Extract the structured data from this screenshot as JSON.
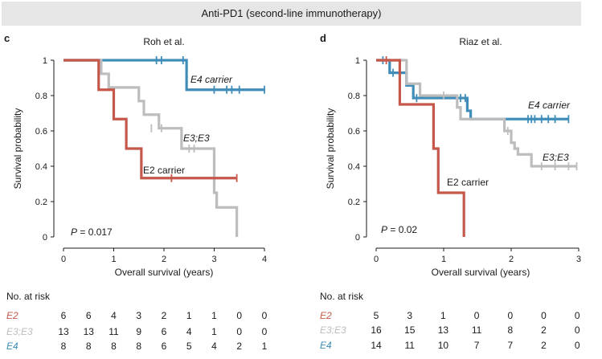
{
  "banner": "Anti-PD1 (second-line immunotherapy)",
  "colors": {
    "E2": "#c5584a",
    "E3E3": "#bdbdbd",
    "E4": "#3f8db8",
    "axis": "#1a1a1a"
  },
  "chart_data": [
    {
      "type": "line",
      "panel_letter": "c",
      "title": "Roh et al.",
      "xlabel": "Overall survival (years)",
      "ylabel": "Survival probability",
      "xlim": [
        0,
        4
      ],
      "ylim": [
        0,
        1
      ],
      "xticks": [
        "0",
        "1",
        "2",
        "3",
        "4"
      ],
      "yticks": [
        "0",
        "0.2",
        "0.4",
        "0.6",
        "0.8",
        "1"
      ],
      "pvalue": {
        "prefix": "P",
        "text": " = 0.017"
      },
      "series": [
        {
          "key": "E4",
          "label": "E4 carrier",
          "steps": [
            [
              0,
              1
            ],
            [
              2.45,
              0.833
            ],
            [
              4.0,
              0.833
            ]
          ],
          "censors": [
            [
              1.85,
              1
            ],
            [
              1.95,
              1
            ],
            [
              2.38,
              1
            ],
            [
              3.0,
              0.833
            ],
            [
              3.25,
              0.833
            ],
            [
              3.35,
              0.833
            ],
            [
              3.5,
              0.833
            ],
            [
              4.0,
              0.833
            ]
          ]
        },
        {
          "key": "E3E3",
          "label": "E3;E3",
          "steps": [
            [
              0,
              1
            ],
            [
              0.75,
              0.923
            ],
            [
              0.9,
              0.846
            ],
            [
              1.5,
              0.769
            ],
            [
              1.6,
              0.692
            ],
            [
              1.9,
              0.615
            ],
            [
              2.35,
              0.5
            ],
            [
              3.0,
              0.25
            ],
            [
              3.05,
              0.167
            ],
            [
              3.45,
              0.0
            ],
            [
              3.45,
              0.0
            ]
          ],
          "censors": [
            [
              1.75,
              0.615
            ],
            [
              1.95,
              0.615
            ],
            [
              2.5,
              0.5
            ],
            [
              2.6,
              0.5
            ]
          ]
        },
        {
          "key": "E2",
          "label": "E2 carrier",
          "steps": [
            [
              0,
              1
            ],
            [
              0.7,
              0.833
            ],
            [
              1.0,
              0.667
            ],
            [
              1.25,
              0.5
            ],
            [
              1.55,
              0.333
            ],
            [
              3.45,
              0.333
            ]
          ],
          "censors": [
            [
              2.15,
              0.333
            ],
            [
              3.45,
              0.333
            ]
          ]
        }
      ],
      "risk": {
        "header": "No. at risk",
        "rows": [
          {
            "key": "E2",
            "label": "E2",
            "values": [
              "6",
              "6",
              "4",
              "3",
              "2",
              "1",
              "1",
              "0",
              "0"
            ]
          },
          {
            "key": "E3E3",
            "label": "E3;E3",
            "values": [
              "13",
              "13",
              "11",
              "9",
              "6",
              "4",
              "1",
              "0",
              "0"
            ]
          },
          {
            "key": "E4",
            "label": "E4",
            "values": [
              "8",
              "8",
              "8",
              "8",
              "6",
              "5",
              "4",
              "2",
              "1"
            ]
          }
        ]
      }
    },
    {
      "type": "line",
      "panel_letter": "d",
      "title": "Riaz et al.",
      "xlabel": "Overall survival (years)",
      "ylabel": "Survival probability",
      "xlim": [
        0,
        3
      ],
      "ylim": [
        0,
        1
      ],
      "xticks": [
        "0",
        "1",
        "2",
        "3"
      ],
      "yticks": [
        "0",
        "0.2",
        "0.4",
        "0.6",
        "0.8",
        "1"
      ],
      "pvalue": {
        "prefix": "P",
        "text": " = 0.02"
      },
      "series": [
        {
          "key": "E4",
          "label": "E4 carrier",
          "steps": [
            [
              0,
              1
            ],
            [
              0.2,
              0.929
            ],
            [
              0.45,
              0.857
            ],
            [
              0.55,
              0.786
            ],
            [
              1.35,
              0.714
            ],
            [
              1.4,
              0.667
            ],
            [
              2.85,
              0.667
            ]
          ],
          "censors": [
            [
              0.1,
              1
            ],
            [
              0.25,
              0.929
            ],
            [
              0.6,
              0.786
            ],
            [
              1.25,
              0.786
            ],
            [
              1.32,
              0.786
            ],
            [
              2.25,
              0.667
            ],
            [
              2.3,
              0.667
            ],
            [
              2.35,
              0.667
            ],
            [
              2.45,
              0.667
            ],
            [
              2.55,
              0.667
            ],
            [
              2.65,
              0.667
            ],
            [
              2.85,
              0.667
            ]
          ]
        },
        {
          "key": "E3E3",
          "label": "E3;E3",
          "steps": [
            [
              0,
              1
            ],
            [
              0.45,
              0.867
            ],
            [
              0.65,
              0.8
            ],
            [
              1.2,
              0.733
            ],
            [
              1.25,
              0.667
            ],
            [
              1.9,
              0.6
            ],
            [
              2.0,
              0.533
            ],
            [
              2.05,
              0.5
            ],
            [
              2.1,
              0.467
            ],
            [
              2.3,
              0.4
            ],
            [
              2.97,
              0.4
            ]
          ],
          "censors": [
            [
              1.0,
              0.8
            ],
            [
              1.95,
              0.6
            ],
            [
              2.45,
              0.4
            ],
            [
              2.65,
              0.4
            ],
            [
              2.85,
              0.4
            ],
            [
              2.97,
              0.4
            ]
          ]
        },
        {
          "key": "E2",
          "label": "E2 carrier",
          "steps": [
            [
              0,
              1
            ],
            [
              0.35,
              0.75
            ],
            [
              0.85,
              0.5
            ],
            [
              0.92,
              0.25
            ],
            [
              1.3,
              0.0
            ],
            [
              1.3,
              0.0
            ]
          ],
          "censors": [
            [
              0.15,
              1
            ]
          ]
        }
      ],
      "risk": {
        "header": "No. at risk",
        "rows": [
          {
            "key": "E2",
            "label": "E2",
            "values": [
              "5",
              "3",
              "1",
              "0",
              "0",
              "0",
              "0"
            ]
          },
          {
            "key": "E3E3",
            "label": "E3;E3",
            "values": [
              "16",
              "15",
              "13",
              "11",
              "8",
              "2",
              "0"
            ]
          },
          {
            "key": "E4",
            "label": "E4",
            "values": [
              "14",
              "11",
              "10",
              "7",
              "7",
              "2",
              "0"
            ]
          }
        ]
      }
    }
  ]
}
